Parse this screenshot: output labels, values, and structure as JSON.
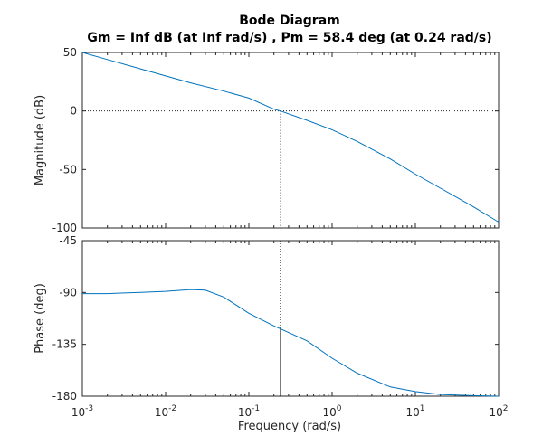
{
  "chart_data": {
    "type": "line",
    "title": "Bode Diagram",
    "subtitle": "Gm = Inf dB (at Inf rad/s) ,  Pm = 58.4 deg (at 0.24 rad/s)",
    "xlabel": "Frequency  (rad/s)",
    "x_scale": "log",
    "xlim": [
      0.001,
      100
    ],
    "x_ticks": [
      0.001,
      0.01,
      0.1,
      1,
      10,
      100
    ],
    "x_tick_labels": [
      {
        "base": "10",
        "exp": "-3"
      },
      {
        "base": "10",
        "exp": "-2"
      },
      {
        "base": "10",
        "exp": "-1"
      },
      {
        "base": "10",
        "exp": "0"
      },
      {
        "base": "10",
        "exp": "1"
      },
      {
        "base": "10",
        "exp": "2"
      }
    ],
    "crossover_frequency": 0.24,
    "phase_at_crossover": -121.6,
    "line_color": "#0072BD",
    "panels": [
      {
        "name": "magnitude",
        "ylabel": "Magnitude (dB)",
        "ylim": [
          -100,
          50
        ],
        "y_ticks": [
          50,
          0,
          -50,
          -100
        ],
        "reference_line": 0,
        "x": [
          0.001,
          0.002,
          0.005,
          0.01,
          0.02,
          0.05,
          0.1,
          0.2,
          0.24,
          0.5,
          1,
          2,
          5,
          10,
          20,
          50,
          100
        ],
        "y": [
          50,
          44,
          36,
          30,
          24,
          17,
          11,
          1.5,
          0,
          -8,
          -16,
          -26,
          -41,
          -54,
          -66,
          -82,
          -95
        ]
      },
      {
        "name": "phase",
        "ylabel": "Phase (deg)",
        "ylim": [
          -180,
          -45
        ],
        "y_ticks": [
          -45,
          -90,
          -135,
          -180
        ],
        "reference_line": -180,
        "x": [
          0.001,
          0.002,
          0.005,
          0.01,
          0.02,
          0.03,
          0.05,
          0.1,
          0.2,
          0.24,
          0.5,
          1,
          2,
          5,
          10,
          20,
          50,
          100
        ],
        "y": [
          -91,
          -91,
          -90,
          -89,
          -87.5,
          -88,
          -94,
          -108,
          -119,
          -121.6,
          -132,
          -147,
          -160,
          -172,
          -176,
          -178.5,
          -179.5,
          -180
        ]
      }
    ]
  }
}
